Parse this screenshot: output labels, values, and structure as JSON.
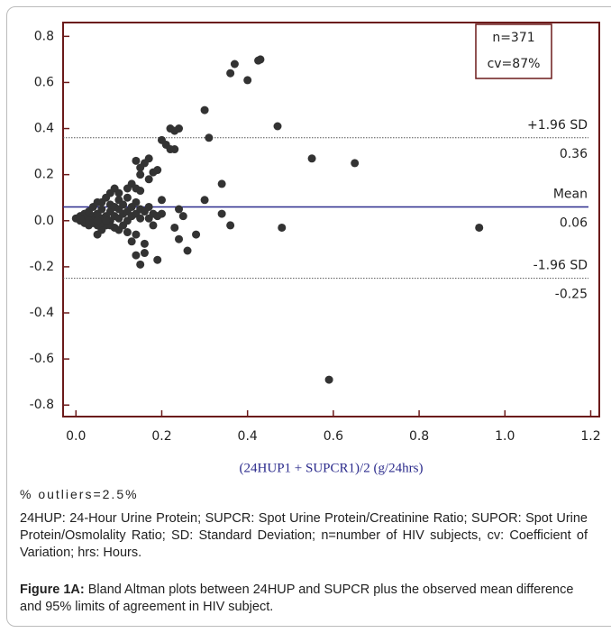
{
  "chart_data": {
    "type": "scatter",
    "xlabel": "(24HUP1 + SUPCR1)/2 (g/24hrs)",
    "xlim": [
      -0.03,
      1.22
    ],
    "ylim": [
      -0.85,
      0.86
    ],
    "xticks": [
      {
        "value": 0,
        "label": "0.0"
      },
      0.2,
      0.4,
      0.6,
      0.8,
      {
        "value": 1,
        "label": "1.0"
      },
      1.2
    ],
    "yticks": [
      -0.8,
      -0.6,
      -0.4,
      -0.2,
      {
        "value": 0,
        "label": "0.0"
      },
      0.2,
      0.4,
      0.6,
      0.8
    ],
    "color": "#333333",
    "x": [
      0.43,
      0.425,
      0.37,
      0.36,
      0.4,
      0.3,
      0.47,
      0.24,
      0.23,
      0.22,
      0.31,
      0.2,
      0.21,
      0.22,
      0.23,
      0.55,
      0.65,
      0.17,
      0.16,
      0.14,
      0.15,
      0.18,
      0.19,
      0.15,
      0.17,
      0.34,
      0.13,
      0.14,
      0.15,
      0.12,
      0.1,
      0.09,
      0.08,
      0.2,
      0.3,
      0.24,
      0.34,
      0.25,
      0.36,
      0.48,
      0.94,
      0.23,
      0.18,
      0.28,
      0.14,
      0.16,
      0.24,
      0.26,
      0.14,
      0.16,
      0.19,
      0.15,
      0.59,
      0.05,
      0.06,
      0.1,
      0.12,
      0.13,
      0.0,
      0.01,
      0.01,
      0.02,
      0.02,
      0.03,
      0.03,
      0.03,
      0.04,
      0.04,
      0.04,
      0.05,
      0.05,
      0.05,
      0.06,
      0.06,
      0.06,
      0.07,
      0.07,
      0.07,
      0.08,
      0.08,
      0.08,
      0.09,
      0.09,
      0.09,
      0.1,
      0.1,
      0.1,
      0.11,
      0.11,
      0.11,
      0.12,
      0.12,
      0.12,
      0.13,
      0.13,
      0.14,
      0.14,
      0.15,
      0.15,
      0.16,
      0.17,
      0.17,
      0.18,
      0.19,
      0.2,
      0.02,
      0.01,
      0.03,
      0.04,
      0.06,
      0.08,
      0.05,
      0.07
    ],
    "y": [
      0.7,
      0.695,
      0.68,
      0.64,
      0.61,
      0.48,
      0.41,
      0.4,
      0.39,
      0.4,
      0.36,
      0.35,
      0.33,
      0.31,
      0.31,
      0.27,
      0.25,
      0.27,
      0.25,
      0.26,
      0.23,
      0.21,
      0.22,
      0.2,
      0.18,
      0.16,
      0.16,
      0.14,
      0.13,
      0.14,
      0.12,
      0.14,
      0.12,
      0.09,
      0.09,
      0.05,
      0.03,
      0.02,
      -0.02,
      -0.03,
      -0.03,
      -0.03,
      -0.02,
      -0.06,
      -0.06,
      -0.1,
      -0.08,
      -0.13,
      -0.15,
      -0.14,
      -0.17,
      -0.19,
      -0.69,
      -0.06,
      -0.04,
      -0.04,
      -0.05,
      -0.09,
      0.01,
      0.02,
      0.0,
      0.03,
      -0.01,
      0.01,
      0.04,
      -0.02,
      0.02,
      0.06,
      0.0,
      0.03,
      0.08,
      -0.02,
      0.01,
      0.05,
      0.08,
      0.02,
      0.1,
      -0.02,
      0.04,
      0.07,
      0.0,
      0.02,
      0.06,
      -0.03,
      0.05,
      0.09,
      0.01,
      0.03,
      0.07,
      -0.02,
      0.04,
      0.1,
      0.0,
      0.06,
      0.02,
      0.08,
      0.03,
      0.05,
      0.01,
      0.04,
      0.06,
      0.01,
      0.03,
      0.02,
      0.03,
      0.01,
      0.01,
      0.0,
      -0.01,
      -0.01,
      -0.02,
      0.0,
      0.0
    ],
    "reference_lines": [
      {
        "label": "+1.96 SD",
        "value": 0.36,
        "style": "dotted",
        "color": "#555555"
      },
      {
        "label": "Mean",
        "value": 0.06,
        "style": "solid",
        "color": "#2b2b8c"
      },
      {
        "label": "-1.96 SD",
        "value": -0.25,
        "style": "dotted",
        "color": "#555555"
      }
    ],
    "annotations": [
      "n=371",
      "cv=87%"
    ]
  },
  "outliers_note": "% outliers=2.5%",
  "footnote": "24HUP: 24-Hour Urine Protein; SUPCR: Spot Urine Protein/Creatinine Ratio; SUPOR: Spot Urine Protein/Osmolality Ratio; SD: Standard Deviation; n=number of HIV subjects, cv: Coefficient of Variation; hrs: Hours.",
  "caption": {
    "label": "Figure 1A:",
    "text": "Bland Altman plots between 24HUP and SUPCR plus the observed mean difference and 95% limits of agreement in HIV subject."
  }
}
